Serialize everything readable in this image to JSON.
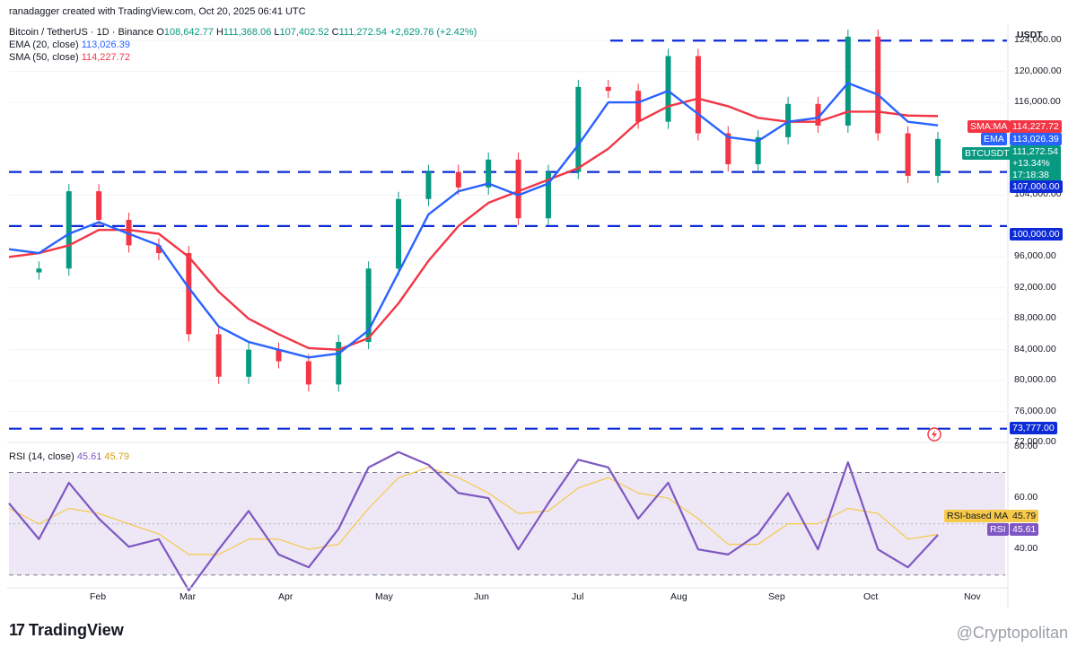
{
  "header": {
    "created_by": "ranadagger created with TradingView.com, Oct 20, 2025 06:41 UTC",
    "symbol_title": "Bitcoin / TetherUS · 1D · Binance",
    "ohlc": {
      "o_label": "O",
      "o": "108,642.77",
      "h_label": "H",
      "h": "111,368.06",
      "l_label": "L",
      "l": "107,402.52",
      "c_label": "C",
      "c": "111,272.54",
      "change": "+2,629.76 (+2.42%)"
    },
    "ema_label": "EMA (20, close)",
    "ema_value": "113,026.39",
    "sma_label": "SMA (50, close)",
    "sma_value": "114,227.72"
  },
  "price_axis": {
    "currency": "USDT",
    "ticks": [
      "124,000.00",
      "120,000.00",
      "116,000.00",
      "104,000.00",
      "96,000.00",
      "92,000.00",
      "88,000.00",
      "84,000.00",
      "80,000.00",
      "76,000.00",
      "72,000.00"
    ]
  },
  "price_tags": {
    "sma_name": "SMA:MA",
    "sma_value": "114,227.72",
    "ema_name": "EMA",
    "ema_value": "113,026.39",
    "symbol_name": "BTCUSDT",
    "last_price": "111,272.54",
    "last_change": "+13.34%",
    "countdown": "17:18:38",
    "level_107": "107,000.00",
    "level_100": "100,000.00",
    "level_73777": "73,777.00"
  },
  "rsi": {
    "title": "RSI (14, close)",
    "value": "45.61",
    "ma_value": "45.79",
    "ticks": [
      "80.00",
      "60.00",
      "40.00"
    ],
    "ma_tag_name": "RSI-based MA",
    "ma_tag_value": "45.79",
    "rsi_tag_name": "RSI",
    "rsi_tag_value": "45.61"
  },
  "time_axis": [
    "Feb",
    "Mar",
    "Apr",
    "May",
    "Jun",
    "Jul",
    "Aug",
    "Sep",
    "Oct",
    "Nov"
  ],
  "brand": "TradingView",
  "watermark": "@Cryptopolitan",
  "colors": {
    "up": "#089981",
    "down": "#f23645",
    "ema": "#2962ff",
    "sma": "#f23645",
    "level": "#0d2bd6",
    "rsi": "#7e57c2",
    "rsi_ma": "#f7c948",
    "rsi_band": "#ede7f6"
  },
  "chart_data": {
    "type": "line",
    "title": "Bitcoin / TetherUS · 1D · Binance",
    "x": [
      "Jan 1",
      "Jan 10",
      "Jan 20",
      "Feb 1",
      "Feb 10",
      "Feb 20",
      "Mar 1",
      "Mar 10",
      "Mar 20",
      "Apr 1",
      "Apr 8",
      "Apr 20",
      "May 1",
      "May 10",
      "May 20",
      "Jun 1",
      "Jun 10",
      "Jun 22",
      "Jul 1",
      "Jul 14",
      "Jul 25",
      "Aug 5",
      "Aug 14",
      "Aug 25",
      "Sep 1",
      "Sep 10",
      "Sep 20",
      "Oct 1",
      "Oct 6",
      "Oct 10",
      "Oct 17",
      "Oct 20"
    ],
    "series": [
      {
        "name": "Close",
        "values": [
          94000,
          94500,
          104500,
          100800,
          97500,
          96500,
          86000,
          80500,
          84000,
          82500,
          79500,
          85000,
          94500,
          103500,
          107000,
          105000,
          108600,
          101000,
          107000,
          118000,
          117500,
          113500,
          122000,
          112000,
          108000,
          111500,
          115800,
          113000,
          124500,
          112000,
          106500,
          111272
        ]
      },
      {
        "name": "EMA (20, close)",
        "values": [
          97000,
          96500,
          99000,
          100500,
          99000,
          97500,
          92000,
          87000,
          85000,
          84000,
          83000,
          83500,
          86500,
          94000,
          101500,
          104500,
          105500,
          104000,
          105500,
          110500,
          116000,
          116000,
          117500,
          114500,
          111500,
          111000,
          113500,
          114000,
          118500,
          117000,
          113500,
          113026
        ]
      },
      {
        "name": "SMA (50, close)",
        "values": [
          96000,
          96500,
          97500,
          99500,
          99500,
          99000,
          96000,
          91500,
          88000,
          86000,
          84200,
          84000,
          85500,
          90000,
          95500,
          100000,
          103000,
          104500,
          106000,
          107500,
          110000,
          113500,
          115500,
          116500,
          115500,
          114000,
          113500,
          113500,
          114800,
          114800,
          114300,
          114227
        ]
      }
    ],
    "levels": [
      124000,
      107000,
      100000,
      73777
    ],
    "ylim": [
      72000,
      126000
    ],
    "rsi": {
      "x": [
        "Jan 1",
        "Jan 10",
        "Jan 20",
        "Feb 1",
        "Feb 10",
        "Feb 20",
        "Mar 1",
        "Mar 10",
        "Mar 20",
        "Apr 1",
        "Apr 8",
        "Apr 20",
        "May 1",
        "May 10",
        "May 20",
        "Jun 1",
        "Jun 10",
        "Jun 22",
        "Jul 1",
        "Jul 14",
        "Jul 25",
        "Aug 5",
        "Aug 14",
        "Aug 25",
        "Sep 1",
        "Sep 10",
        "Sep 20",
        "Oct 1",
        "Oct 6",
        "Oct 10",
        "Oct 17",
        "Oct 20"
      ],
      "values": [
        58,
        44,
        66,
        52,
        41,
        44,
        24,
        40,
        55,
        38,
        33,
        48,
        72,
        78,
        73,
        62,
        60,
        40,
        58,
        75,
        72,
        52,
        66,
        40,
        38,
        46,
        62,
        40,
        74,
        40,
        33,
        45.61
      ],
      "ma": [
        56,
        50,
        56,
        54,
        50,
        46,
        38,
        38,
        44,
        44,
        40,
        42,
        56,
        68,
        72,
        68,
        62,
        54,
        55,
        64,
        68,
        62,
        60,
        52,
        42,
        42,
        50,
        50,
        56,
        54,
        44,
        45.79
      ],
      "ylim": [
        25,
        80
      ],
      "bands": [
        70,
        30
      ]
    }
  }
}
